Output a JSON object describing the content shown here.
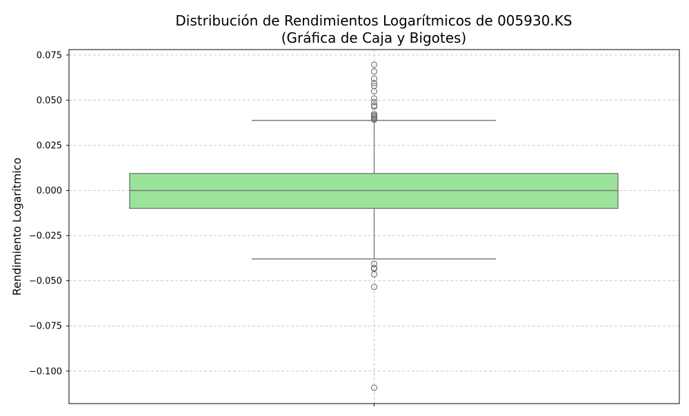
{
  "chart_data": {
    "type": "box",
    "title_line1": "Distribución de Rendimientos Logarítmicos de 005930.KS",
    "title_line2": "(Gráfica de Caja y Bigotes)",
    "xlabel": "",
    "ylabel": "Rendimiento Logarítmico",
    "ylim": [
      -0.118,
      0.078
    ],
    "yticks": [
      0.075,
      0.05,
      0.025,
      0.0,
      -0.025,
      -0.05,
      -0.075,
      -0.1
    ],
    "ytick_labels": [
      "0.075",
      "0.050",
      "0.025",
      "0.000",
      "−0.025",
      "−0.050",
      "−0.075",
      "−0.100"
    ],
    "grid": true,
    "box": {
      "q1": -0.0099,
      "median": 0.0,
      "q3": 0.0094,
      "whisker_low": -0.0379,
      "whisker_high": 0.0388
    },
    "outliers": [
      0.0696,
      0.0659,
      0.0619,
      0.0594,
      0.0579,
      0.0549,
      0.0509,
      0.0489,
      0.0471,
      0.0464,
      0.0423,
      0.0416,
      0.041,
      0.0404,
      0.0397,
      0.0392,
      -0.0406,
      -0.0429,
      -0.0434,
      -0.0464,
      -0.0534,
      -0.1092
    ],
    "colors": {
      "box_fill": "#9be39b",
      "lines": "#707070",
      "grid": "#c8c8c8"
    }
  }
}
